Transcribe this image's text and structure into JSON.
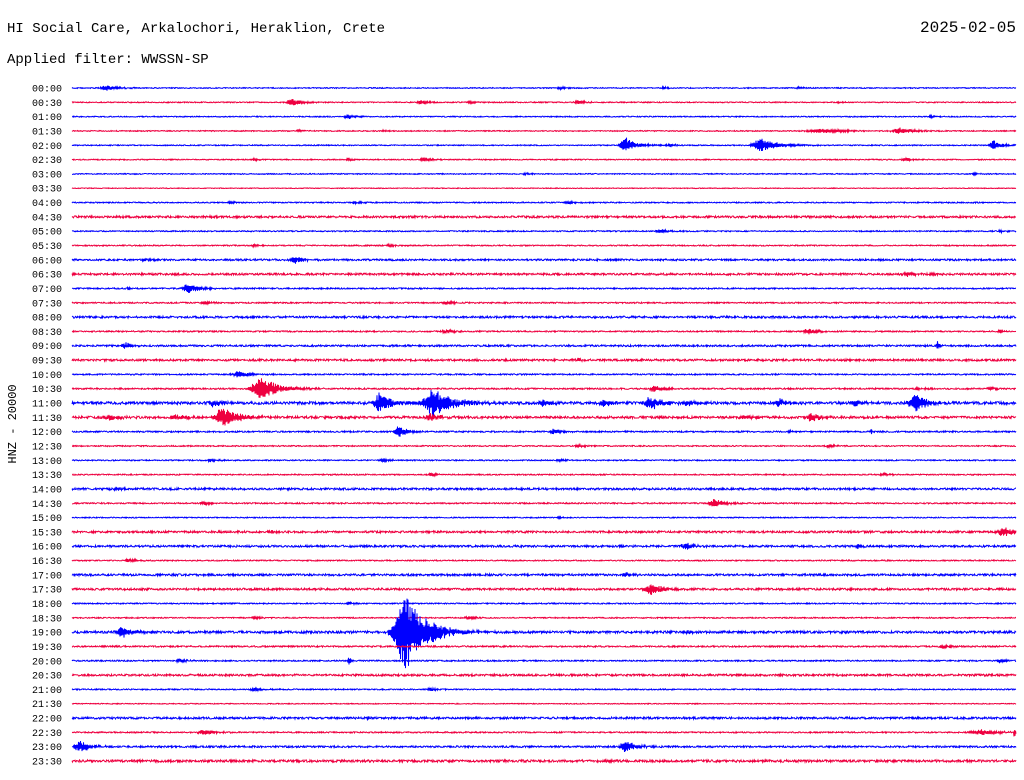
{
  "chart_data": {
    "type": "line",
    "title": "HI Social Care, Arkalochori, Heraklion, Crete",
    "date": "2025-02-05",
    "subtitle": "Applied filter: WWSSN-SP",
    "ylabel": "HNZ - 20000",
    "xlim": [
      0,
      30
    ],
    "rows": [
      {
        "label": "00:00",
        "color": "#0000ff",
        "noise": 0.035,
        "events": [
          {
            "t": 1.1,
            "amp": 0.21,
            "dur": 0.8
          },
          {
            "t": 15.5,
            "amp": 0.1,
            "dur": 0.5
          },
          {
            "t": 18.8,
            "amp": 0.08,
            "dur": 0.4
          },
          {
            "t": 23.1,
            "amp": 0.07,
            "dur": 0.4
          }
        ]
      },
      {
        "label": "00:30",
        "color": "#ee0040",
        "noise": 0.035,
        "events": [
          {
            "t": 7.0,
            "amp": 0.25,
            "dur": 0.8
          },
          {
            "t": 11.1,
            "amp": 0.15,
            "dur": 0.6
          },
          {
            "t": 12.6,
            "amp": 0.1,
            "dur": 0.4
          },
          {
            "t": 16.1,
            "amp": 0.15,
            "dur": 0.6
          },
          {
            "t": 24.4,
            "amp": 0.07,
            "dur": 0.3
          }
        ]
      },
      {
        "label": "01:00",
        "color": "#0000ff",
        "noise": 0.035,
        "events": [
          {
            "t": 8.8,
            "amp": 0.15,
            "dur": 0.6
          },
          {
            "t": 27.3,
            "amp": 0.08,
            "dur": 0.4
          }
        ]
      },
      {
        "label": "01:30",
        "color": "#ee0040",
        "noise": 0.035,
        "events": [
          {
            "t": 7.2,
            "amp": 0.08,
            "dur": 0.4
          },
          {
            "t": 9.9,
            "amp": 0.08,
            "dur": 0.4
          },
          {
            "t": 23.8,
            "amp": 0.14,
            "dur": 1.9
          },
          {
            "t": 26.3,
            "amp": 0.22,
            "dur": 1.0
          }
        ]
      },
      {
        "label": "02:00",
        "color": "#0000ff",
        "noise": 0.035,
        "events": [
          {
            "t": 17.6,
            "amp": 0.56,
            "dur": 0.8
          },
          {
            "t": 19.0,
            "amp": 0.1,
            "dur": 0.5
          },
          {
            "t": 21.9,
            "amp": 0.49,
            "dur": 1.3
          },
          {
            "t": 29.3,
            "amp": 0.35,
            "dur": 0.65
          }
        ]
      },
      {
        "label": "02:30",
        "color": "#ee0040",
        "noise": 0.035,
        "events": [
          {
            "t": 5.8,
            "amp": 0.08,
            "dur": 0.5
          },
          {
            "t": 8.8,
            "amp": 0.08,
            "dur": 0.5
          },
          {
            "t": 11.2,
            "amp": 0.14,
            "dur": 0.6
          },
          {
            "t": 26.5,
            "amp": 0.12,
            "dur": 0.6
          }
        ]
      },
      {
        "label": "03:00",
        "color": "#0000ff",
        "noise": 0.035,
        "events": [
          {
            "t": 14.4,
            "amp": 0.07,
            "dur": 0.4
          },
          {
            "t": 28.7,
            "amp": 0.07,
            "dur": 0.4
          }
        ]
      },
      {
        "label": "03:30",
        "color": "#ee0040",
        "noise": 0.025,
        "events": []
      },
      {
        "label": "04:00",
        "color": "#0000ff",
        "noise": 0.04,
        "events": [
          {
            "t": 5.0,
            "amp": 0.1,
            "dur": 0.5
          },
          {
            "t": 9.0,
            "amp": 0.1,
            "dur": 0.5
          },
          {
            "t": 15.8,
            "amp": 0.12,
            "dur": 0.5
          }
        ]
      },
      {
        "label": "04:30",
        "color": "#ee0040",
        "noise": 0.07,
        "events": [
          {
            "t": 4.4,
            "amp": 0.1,
            "dur": 0.4
          }
        ]
      },
      {
        "label": "05:00",
        "color": "#0000ff",
        "noise": 0.04,
        "events": [
          {
            "t": 18.7,
            "amp": 0.14,
            "dur": 0.6
          },
          {
            "t": 29.5,
            "amp": 0.1,
            "dur": 0.4
          }
        ]
      },
      {
        "label": "05:30",
        "color": "#ee0040",
        "noise": 0.04,
        "events": [
          {
            "t": 5.8,
            "amp": 0.1,
            "dur": 0.4
          },
          {
            "t": 10.1,
            "amp": 0.08,
            "dur": 0.4
          }
        ]
      },
      {
        "label": "06:00",
        "color": "#0000ff",
        "noise": 0.06,
        "events": [
          {
            "t": 2.3,
            "amp": 0.1,
            "dur": 0.4
          },
          {
            "t": 7.1,
            "amp": 0.22,
            "dur": 0.8
          }
        ]
      },
      {
        "label": "06:30",
        "color": "#ee0040",
        "noise": 0.07,
        "events": [
          {
            "t": 26.6,
            "amp": 0.14,
            "dur": 1.0
          }
        ]
      },
      {
        "label": "07:00",
        "color": "#0000ff",
        "noise": 0.045,
        "events": [
          {
            "t": 1.8,
            "amp": 0.1,
            "dur": 0.3
          },
          {
            "t": 3.7,
            "amp": 0.35,
            "dur": 0.8
          }
        ]
      },
      {
        "label": "07:30",
        "color": "#ee0040",
        "noise": 0.045,
        "events": [
          {
            "t": 4.2,
            "amp": 0.12,
            "dur": 0.5
          },
          {
            "t": 11.9,
            "amp": 0.14,
            "dur": 0.6
          }
        ]
      },
      {
        "label": "08:00",
        "color": "#0000ff",
        "noise": 0.07,
        "events": []
      },
      {
        "label": "08:30",
        "color": "#ee0040",
        "noise": 0.045,
        "events": [
          {
            "t": 11.9,
            "amp": 0.14,
            "dur": 0.6
          },
          {
            "t": 23.4,
            "amp": 0.21,
            "dur": 0.7
          },
          {
            "t": 29.5,
            "amp": 0.1,
            "dur": 0.4
          }
        ]
      },
      {
        "label": "09:00",
        "color": "#0000ff",
        "noise": 0.06,
        "events": [
          {
            "t": 1.7,
            "amp": 0.21,
            "dur": 0.6
          },
          {
            "t": 27.5,
            "amp": 0.35,
            "dur": 0.15
          }
        ]
      },
      {
        "label": "09:30",
        "color": "#ee0040",
        "noise": 0.07,
        "events": [
          {
            "t": 16.1,
            "amp": 0.12,
            "dur": 0.4
          }
        ]
      },
      {
        "label": "10:00",
        "color": "#0000ff",
        "noise": 0.045,
        "events": [
          {
            "t": 5.3,
            "amp": 0.22,
            "dur": 0.8
          }
        ]
      },
      {
        "label": "10:30",
        "color": "#ee0040",
        "noise": 0.05,
        "events": [
          {
            "t": 6.0,
            "amp": 0.9,
            "dur": 1.3
          },
          {
            "t": 18.5,
            "amp": 0.21,
            "dur": 0.7
          },
          {
            "t": 26.9,
            "amp": 0.1,
            "dur": 0.5
          },
          {
            "t": 29.2,
            "amp": 0.1,
            "dur": 0.5
          }
        ]
      },
      {
        "label": "11:00",
        "color": "#0000ff",
        "noise": 0.09,
        "events": [
          {
            "t": 4.5,
            "amp": 0.28,
            "dur": 0.6
          },
          {
            "t": 9.8,
            "amp": 0.7,
            "dur": 0.95
          },
          {
            "t": 11.5,
            "amp": 0.98,
            "dur": 1.45
          },
          {
            "t": 15.0,
            "amp": 0.21,
            "dur": 0.8
          },
          {
            "t": 16.9,
            "amp": 0.21,
            "dur": 0.7
          },
          {
            "t": 18.4,
            "amp": 0.49,
            "dur": 0.95
          },
          {
            "t": 19.6,
            "amp": 0.2,
            "dur": 0.7
          },
          {
            "t": 22.5,
            "amp": 0.28,
            "dur": 0.7
          },
          {
            "t": 24.9,
            "amp": 0.2,
            "dur": 0.6
          },
          {
            "t": 26.8,
            "amp": 0.7,
            "dur": 0.95
          }
        ]
      },
      {
        "label": "11:30",
        "color": "#ee0040",
        "noise": 0.08,
        "events": [
          {
            "t": 1.2,
            "amp": 0.21,
            "dur": 0.7
          },
          {
            "t": 3.3,
            "amp": 0.21,
            "dur": 0.7
          },
          {
            "t": 4.8,
            "amp": 0.7,
            "dur": 1.3
          },
          {
            "t": 11.4,
            "amp": 0.28,
            "dur": 0.7
          },
          {
            "t": 21.4,
            "amp": 0.21,
            "dur": 0.7
          },
          {
            "t": 23.5,
            "amp": 0.28,
            "dur": 0.8
          }
        ]
      },
      {
        "label": "12:00",
        "color": "#0000ff",
        "noise": 0.05,
        "events": [
          {
            "t": 10.4,
            "amp": 0.42,
            "dur": 0.65
          },
          {
            "t": 15.3,
            "amp": 0.21,
            "dur": 0.6
          },
          {
            "t": 22.8,
            "amp": 0.2,
            "dur": 0.1
          },
          {
            "t": 25.4,
            "amp": 0.2,
            "dur": 0.1
          }
        ]
      },
      {
        "label": "12:30",
        "color": "#ee0040",
        "noise": 0.04,
        "events": [
          {
            "t": 16.1,
            "amp": 0.1,
            "dur": 0.5
          },
          {
            "t": 24.1,
            "amp": 0.12,
            "dur": 0.5
          }
        ]
      },
      {
        "label": "13:00",
        "color": "#0000ff",
        "noise": 0.04,
        "events": [
          {
            "t": 4.4,
            "amp": 0.12,
            "dur": 0.5
          },
          {
            "t": 9.9,
            "amp": 0.14,
            "dur": 0.5
          },
          {
            "t": 15.5,
            "amp": 0.1,
            "dur": 0.4
          }
        ]
      },
      {
        "label": "13:30",
        "color": "#ee0040",
        "noise": 0.04,
        "events": [
          {
            "t": 11.4,
            "amp": 0.1,
            "dur": 0.4
          },
          {
            "t": 25.8,
            "amp": 0.12,
            "dur": 0.5
          }
        ]
      },
      {
        "label": "14:00",
        "color": "#0000ff",
        "noise": 0.07,
        "events": [
          {
            "t": 1.4,
            "amp": 0.14,
            "dur": 0.6
          }
        ]
      },
      {
        "label": "14:30",
        "color": "#ee0040",
        "noise": 0.045,
        "events": [
          {
            "t": 4.2,
            "amp": 0.14,
            "dur": 0.6
          },
          {
            "t": 20.4,
            "amp": 0.28,
            "dur": 0.8
          }
        ]
      },
      {
        "label": "15:00",
        "color": "#0000ff",
        "noise": 0.035,
        "events": [
          {
            "t": 15.5,
            "amp": 0.08,
            "dur": 0.4
          }
        ]
      },
      {
        "label": "15:30",
        "color": "#ee0040",
        "noise": 0.07,
        "events": [
          {
            "t": 6.3,
            "amp": 0.12,
            "dur": 0.5
          },
          {
            "t": 29.6,
            "amp": 0.35,
            "dur": 0.8
          }
        ]
      },
      {
        "label": "16:00",
        "color": "#0000ff",
        "noise": 0.07,
        "events": [
          {
            "t": 19.5,
            "amp": 0.28,
            "dur": 0.6
          },
          {
            "t": 25.0,
            "amp": 0.14,
            "dur": 0.5
          }
        ]
      },
      {
        "label": "16:30",
        "color": "#ee0040",
        "noise": 0.04,
        "events": [
          {
            "t": 1.8,
            "amp": 0.14,
            "dur": 0.6
          }
        ]
      },
      {
        "label": "17:00",
        "color": "#0000ff",
        "noise": 0.07,
        "events": [
          {
            "t": 17.6,
            "amp": 0.14,
            "dur": 0.6
          }
        ]
      },
      {
        "label": "17:30",
        "color": "#ee0040",
        "noise": 0.07,
        "events": [
          {
            "t": 18.4,
            "amp": 0.42,
            "dur": 0.8
          }
        ]
      },
      {
        "label": "18:00",
        "color": "#0000ff",
        "noise": 0.04,
        "events": [
          {
            "t": 8.8,
            "amp": 0.1,
            "dur": 0.4
          }
        ]
      },
      {
        "label": "18:30",
        "color": "#ee0040",
        "noise": 0.04,
        "events": [
          {
            "t": 5.8,
            "amp": 0.12,
            "dur": 0.5
          },
          {
            "t": 12.6,
            "amp": 0.14,
            "dur": 0.5
          }
        ]
      },
      {
        "label": "19:00",
        "color": "#0000ff",
        "noise": 0.08,
        "events": [
          {
            "t": 1.6,
            "amp": 0.42,
            "dur": 0.8
          },
          {
            "t": 10.6,
            "amp": 2.65,
            "dur": 1.6
          },
          {
            "t": 19.5,
            "amp": 0.14,
            "dur": 0.4
          }
        ]
      },
      {
        "label": "19:30",
        "color": "#ee0040",
        "noise": 0.05,
        "events": [
          {
            "t": 27.7,
            "amp": 0.14,
            "dur": 0.6
          }
        ]
      },
      {
        "label": "20:00",
        "color": "#0000ff",
        "noise": 0.045,
        "events": [
          {
            "t": 3.4,
            "amp": 0.14,
            "dur": 0.5
          },
          {
            "t": 8.8,
            "amp": 0.35,
            "dur": 0.15
          },
          {
            "t": 29.5,
            "amp": 0.14,
            "dur": 0.6
          }
        ]
      },
      {
        "label": "20:30",
        "color": "#ee0040",
        "noise": 0.07,
        "events": []
      },
      {
        "label": "21:00",
        "color": "#0000ff",
        "noise": 0.04,
        "events": [
          {
            "t": 5.8,
            "amp": 0.14,
            "dur": 0.6
          },
          {
            "t": 11.4,
            "amp": 0.14,
            "dur": 0.5
          }
        ]
      },
      {
        "label": "21:30",
        "color": "#ee0040",
        "noise": 0.03,
        "events": []
      },
      {
        "label": "22:00",
        "color": "#0000ff",
        "noise": 0.07,
        "events": [
          {
            "t": 9.4,
            "amp": 0.2,
            "dur": 0.1
          }
        ]
      },
      {
        "label": "22:30",
        "color": "#ee0040",
        "noise": 0.045,
        "events": [
          {
            "t": 4.2,
            "amp": 0.21,
            "dur": 0.8
          },
          {
            "t": 28.9,
            "amp": 0.21,
            "dur": 1.3
          },
          {
            "t": 29.95,
            "amp": 0.42,
            "dur": 0.1
          }
        ]
      },
      {
        "label": "23:00",
        "color": "#0000ff",
        "noise": 0.06,
        "events": [
          {
            "t": 0.25,
            "amp": 0.42,
            "dur": 0.8
          },
          {
            "t": 17.6,
            "amp": 0.42,
            "dur": 0.8
          }
        ]
      },
      {
        "label": "23:30",
        "color": "#ee0040",
        "noise": 0.08,
        "events": []
      }
    ]
  }
}
